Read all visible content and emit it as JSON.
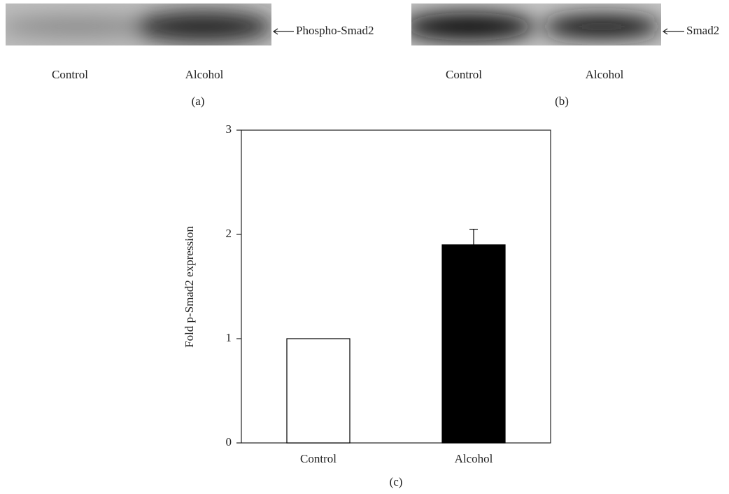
{
  "panels": [
    {
      "lanes": [
        "Control",
        "Alcohol"
      ],
      "band": "Phospho-Smad2",
      "label": "(a)"
    },
    {
      "lanes": [
        "Control",
        "Alcohol"
      ],
      "band": "Smad2",
      "label": "(b)"
    }
  ],
  "chart_data": {
    "type": "bar",
    "label": "(c)",
    "ylabel": "Fold p-Smad2 expression",
    "categories": [
      "Control",
      "Alcohol"
    ],
    "values": [
      1,
      1.9
    ],
    "errors": [
      null,
      0.15
    ],
    "colors": [
      "#ffffff",
      "#000000"
    ],
    "ylim": [
      0,
      3
    ],
    "yticks": [
      0,
      1,
      2,
      3
    ]
  }
}
